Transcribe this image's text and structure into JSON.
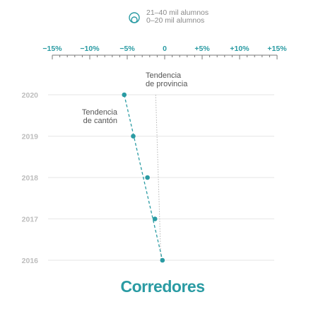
{
  "legend": {
    "items": [
      "21–40 mil alumnos",
      "0–20 mil alumnos"
    ]
  },
  "colors": {
    "accent": "#2a9ba3",
    "axis": "#777777",
    "grid": "#e6e6e6",
    "year": "#bdbdbd",
    "annot": "#555555",
    "province": "#b5b5b5"
  },
  "title": "Corredores",
  "chart_data": {
    "type": "scatter",
    "x_ticks": [
      "−15%",
      "−10%",
      "−5%",
      "0",
      "+5%",
      "+10%",
      "+15%"
    ],
    "xlim": [
      -15,
      15
    ],
    "categories": [
      "2020",
      "2019",
      "2018",
      "2017",
      "2016"
    ],
    "series": [
      {
        "values": [
          -5.4,
          -4.2,
          -2.3,
          -1.3,
          -0.3
        ]
      }
    ],
    "province_trend": [
      [
        -1.2,
        "2020"
      ],
      [
        -0.5,
        "2016"
      ]
    ],
    "annotations": {
      "province": [
        "Tendencia",
        "de provincia"
      ],
      "canton": [
        "Tendencia",
        "de cantón"
      ]
    }
  }
}
